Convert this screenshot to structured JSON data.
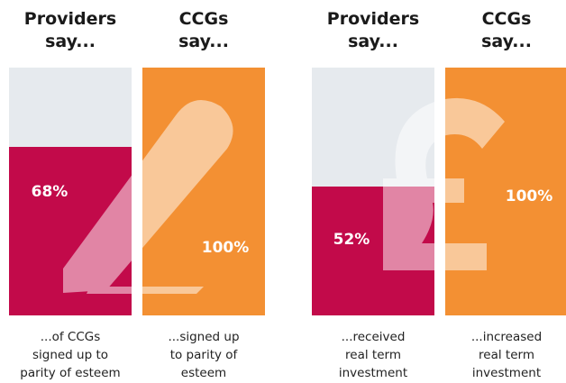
{
  "chart_data": [
    {
      "type": "bar",
      "categories": [
        "Providers\nsay...",
        "CCGs\nsay..."
      ],
      "values": [
        68,
        100
      ],
      "value_labels": [
        "68%",
        "100%"
      ],
      "captions": [
        "...of CCGs\nsigned up to\nparity of esteem",
        "...signed up\nto parity of\nesteem"
      ],
      "colors": [
        "#c20a4a",
        "#f39033"
      ],
      "ylim": [
        0,
        100
      ]
    },
    {
      "type": "bar",
      "categories": [
        "Providers\nsay...",
        "CCGs\nsay..."
      ],
      "values": [
        52,
        100
      ],
      "value_labels": [
        "52%",
        "100%"
      ],
      "captions": [
        "...received\nreal term\ninvestment",
        "...increased\nreal term\ninvestment"
      ],
      "colors": [
        "#c20a4a",
        "#f39033"
      ],
      "ylim": [
        0,
        100
      ]
    }
  ]
}
